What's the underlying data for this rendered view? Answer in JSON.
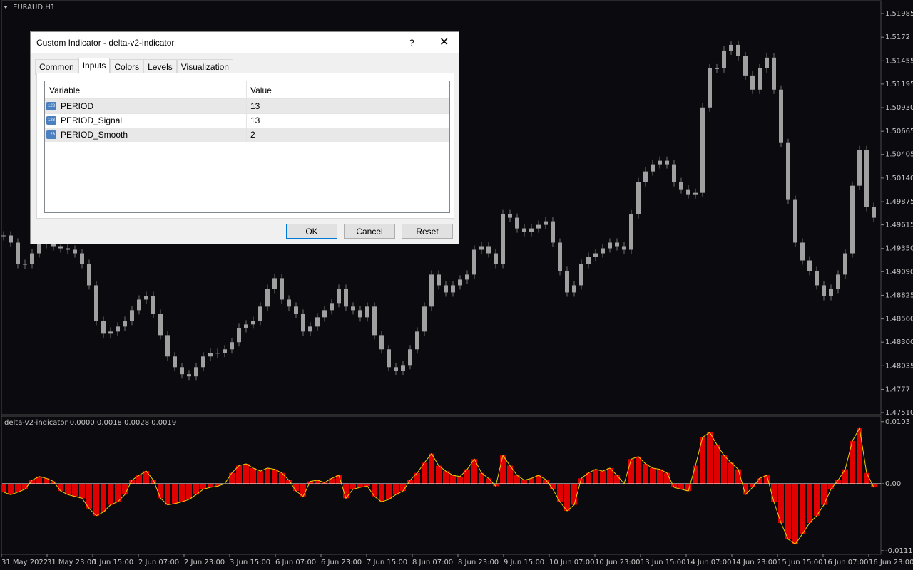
{
  "chart_data": [
    {
      "type": "candlestick",
      "title": "EURAUD,H1",
      "color": "#a0a0a0",
      "values": [
        1.49496,
        1.49416,
        1.49176,
        1.49176,
        1.49296,
        1.49416,
        1.494,
        1.49376,
        1.49352,
        1.49336,
        1.49296,
        1.49176,
        1.48937,
        1.48538,
        1.48394,
        1.48418,
        1.48474,
        1.48538,
        1.48658,
        1.48777,
        1.48817,
        1.48618,
        1.48378,
        1.48139,
        1.48019,
        1.4794,
        1.47916,
        1.48019,
        1.48139,
        1.48179,
        1.48179,
        1.48219,
        1.48299,
        1.48458,
        1.48498,
        1.48538,
        1.48698,
        1.48897,
        1.49017,
        1.48777,
        1.48698,
        1.48618,
        1.48418,
        1.48474,
        1.48578,
        1.48658,
        1.48738,
        1.48897,
        1.48698,
        1.48658,
        1.48578,
        1.48698,
        1.48378,
        1.48219,
        1.48019,
        1.47979,
        1.48043,
        1.48219,
        1.48418,
        1.48698,
        1.49057,
        1.48937,
        1.48857,
        1.48937,
        1.49001,
        1.49057,
        1.49336,
        1.49376,
        1.49296,
        1.49176,
        1.49735,
        1.49695,
        1.49575,
        1.49536,
        1.49575,
        1.49615,
        1.49655,
        1.49416,
        1.49097,
        1.48857,
        1.48937,
        1.49176,
        1.49256,
        1.49296,
        1.49352,
        1.49416,
        1.49376,
        1.49336,
        1.49735,
        1.50094,
        1.50214,
        1.50294,
        1.50334,
        1.50294,
        1.50094,
        1.50014,
        1.49958,
        1.49974,
        1.50932,
        1.51371,
        1.51371,
        1.5157,
        1.51634,
        1.51507,
        1.51291,
        1.51132,
        1.51371,
        1.51491,
        1.51132,
        1.50533,
        1.49895,
        1.49416,
        1.49216,
        1.49097,
        1.48937,
        1.48817,
        1.48897,
        1.49057,
        1.49296,
        1.50054,
        1.50453,
        1.49815,
        1.49695
      ],
      "ylim": [
        1.47486,
        1.52129
      ],
      "yticks": [
        1.51985,
        1.5172,
        1.51455,
        1.51195,
        {
          "value": 1.5093,
          "label": "1.50930"
        },
        1.50665,
        1.50405,
        {
          "value": 1.5014,
          "label": "1.50140"
        },
        1.49875,
        1.49615,
        {
          "value": 1.4935,
          "label": "1.49350"
        },
        {
          "value": 1.4909,
          "label": "1.49090"
        },
        1.48825,
        {
          "value": 1.4856,
          "label": "1.48560"
        },
        {
          "value": 1.483,
          "label": "1.48300"
        },
        1.48035,
        1.4777,
        {
          "value": 1.4751,
          "label": "1.47510"
        }
      ]
    },
    {
      "type": "bar",
      "title": "delta-v2-indicator 0.0000 0.0018 0.0028 0.0019",
      "color": "#e00000",
      "line_color": "#f0d000",
      "values": [
        -0.0014,
        -0.0018,
        -0.0014,
        -0.0009,
        0.0006,
        0.0012,
        0.0009,
        0.0004,
        -0.0012,
        -0.0018,
        -0.0021,
        -0.0024,
        -0.0041,
        -0.0053,
        -0.0047,
        -0.0035,
        -0.003,
        -0.0018,
        0.0006,
        0.0014,
        0.0021,
        0.0006,
        -0.0024,
        -0.0035,
        -0.0033,
        -0.003,
        -0.0026,
        -0.0018,
        -0.0009,
        -0.0006,
        -0.0004,
        0,
        0.0018,
        0.003,
        0.0033,
        0.0026,
        0.0021,
        0.0026,
        0.0024,
        0.0018,
        0.0006,
        -0.0012,
        -0.0021,
        0.0004,
        0.0006,
        0.0002,
        0.0009,
        0.0014,
        -0.0024,
        -0.0009,
        -0.0006,
        -0.0004,
        -0.0021,
        -0.003,
        -0.0026,
        -0.0018,
        -0.0012,
        0.0006,
        0.0018,
        0.0035,
        0.005,
        0.003,
        0.0021,
        0.0014,
        0.0012,
        0.0024,
        0.0041,
        0.0018,
        0.0009,
        -0.0004,
        0.0047,
        0.003,
        0.0014,
        0.0006,
        0.0009,
        0.0014,
        0.0007,
        -0.0009,
        -0.003,
        -0.0045,
        -0.0035,
        0.0009,
        0.0018,
        0.0024,
        0.0021,
        0.0026,
        0.0014,
        0,
        0.0041,
        0.0045,
        0.0033,
        0.0026,
        0.0024,
        0.0018,
        -0.0006,
        -0.0009,
        -0.0012,
        0.003,
        0.0077,
        0.0085,
        0.0065,
        0.0047,
        0.0035,
        0.0024,
        -0.0018,
        -0.0006,
        0.0009,
        0.0014,
        -0.003,
        -0.0065,
        -0.0092,
        -0.01,
        -0.0083,
        -0.0065,
        -0.0053,
        -0.0035,
        -0.0009,
        0.0006,
        0.0024,
        0.0071,
        0.0092,
        0.0018,
        -0.0006
      ],
      "ylim": [
        -0.0117,
        0.0111
      ],
      "yticks": [
        0.0103,
        {
          "value": 0,
          "label": "0.00"
        },
        -0.0111
      ],
      "xtick_labels": [
        "31 May 2022",
        "31 May 23:00",
        "1 Jun 15:00",
        "2 Jun 07:00",
        "2 Jun 23:00",
        "3 Jun 15:00",
        "6 Jun 07:00",
        "6 Jun 23:00",
        "7 Jun 15:00",
        "8 Jun 07:00",
        "8 Jun 23:00",
        "9 Jun 15:00",
        "10 Jun 07:00",
        "10 Jun 23:00",
        "13 Jun 15:00",
        "14 Jun 07:00",
        "14 Jun 23:00",
        "15 Jun 15:00",
        "16 Jun 07:00",
        "16 Jun 23:00"
      ]
    }
  ],
  "dialog": {
    "title": "Custom Indicator - delta-v2-indicator",
    "help": "?",
    "tabs": [
      "Common",
      "Inputs",
      "Colors",
      "Levels",
      "Visualization"
    ],
    "table": {
      "header": [
        "Variable",
        "Value"
      ],
      "rows": [
        {
          "icon": "123",
          "variable": "PERIOD",
          "value": 13
        },
        {
          "icon": "123",
          "variable": "PERIOD_Signal",
          "value": 13
        },
        {
          "icon": "123",
          "variable": "PERIOD_Smooth",
          "value": 2
        }
      ]
    },
    "buttons": [
      "OK",
      "Cancel",
      "Reset"
    ]
  }
}
